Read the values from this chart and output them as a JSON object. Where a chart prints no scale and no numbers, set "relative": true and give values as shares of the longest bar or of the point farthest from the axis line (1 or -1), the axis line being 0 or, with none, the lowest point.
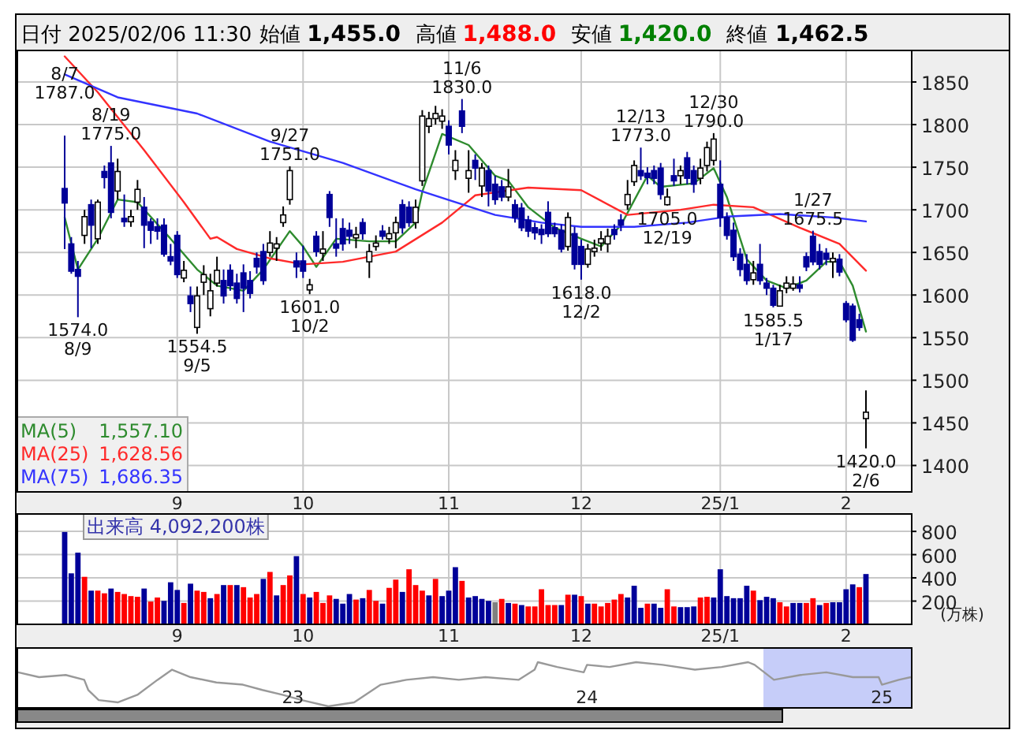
{
  "chart_data": [
    {
      "type": "candlestick",
      "annotations": [
        "始値",
        "1,455.0",
        "高値",
        "1,488.0",
        "安値",
        "1,420.0",
        "終値",
        "1,462.5",
        "1,557.10",
        "1,628.56",
        "1,686.35",
        {
          "text": "8/19\n1775.0",
          "y": 1775.0
        },
        {
          "text": "8/7\n1787.0",
          "y": 1787.0
        },
        {
          "text": "1574.0\n8/9",
          "y": 1574.0
        },
        {
          "text": "1554.5\n9/5",
          "y": 1554.5
        },
        {
          "text": "9/27\n1751.0",
          "y": 1751.0
        },
        {
          "text": "1601.0\n10/2",
          "y": 1601.0
        },
        {
          "text": "11/6\n1830.0",
          "y": 1830.0
        },
        {
          "text": "1618.0\n12/2",
          "y": 1618.0
        },
        {
          "text": "12/13\n1773.0",
          "y": 1773.0
        },
        {
          "text": "1705.0\n12/19",
          "y": 1705.0
        },
        {
          "text": "12/30\n1790.0",
          "y": 1790.0
        },
        {
          "text": "1585.5\n1/17",
          "y": 1585.5
        },
        {
          "text": "1/27\n1675.5",
          "y": 1675.5
        },
        {
          "text": "1420.0\n2/6",
          "y": 1420.0
        }
      ],
      "title": "日付 2025/02/06 11:30",
      "categories": [
        null,
        null,
        null,
        null,
        null,
        null,
        null,
        null,
        null,
        null,
        null,
        null,
        null,
        null,
        null,
        null,
        null,
        "9",
        null,
        null,
        null,
        null,
        null,
        null,
        null,
        null,
        null,
        null,
        null,
        null,
        null,
        null,
        null,
        null,
        null,
        null,
        "10",
        null,
        null,
        null,
        null,
        null,
        null,
        null,
        null,
        null,
        null,
        null,
        null,
        null,
        null,
        null,
        null,
        null,
        null,
        null,
        null,
        null,
        "11",
        null,
        null,
        null,
        null,
        null,
        null,
        null,
        null,
        null,
        null,
        null,
        null,
        null,
        null,
        null,
        null,
        null,
        null,
        null,
        "12",
        null,
        null,
        null,
        null,
        null,
        null,
        null,
        null,
        null,
        null,
        null,
        null,
        null,
        null,
        null,
        null,
        null,
        null,
        null,
        null,
        "25/1",
        null,
        null,
        null,
        null,
        null,
        null,
        null,
        null,
        null,
        null,
        null,
        null,
        null,
        null,
        null,
        null,
        null,
        null,
        "2",
        null,
        null,
        null
      ],
      "ohlc": [
        [
          1725,
          1787.0,
          1654,
          1708
        ],
        [
          1660,
          1668,
          1625,
          1628
        ],
        [
          1630,
          1640,
          1574.0,
          1622
        ],
        [
          1670,
          1700,
          1660,
          1692
        ],
        [
          1706,
          1712,
          1655,
          1682
        ],
        [
          1666,
          1712,
          1660,
          1709
        ],
        [
          1745,
          1752,
          1725,
          1738
        ],
        [
          1755,
          1775.0,
          1690,
          1697
        ],
        [
          1722,
          1760,
          1712,
          1745
        ],
        [
          1690,
          1718,
          1680,
          1686
        ],
        [
          1686,
          1700,
          1680,
          1692
        ],
        [
          1709,
          1735,
          1700,
          1724
        ],
        [
          1703,
          1715,
          1655,
          1682
        ],
        [
          1686,
          1690,
          1660,
          1676
        ],
        [
          1680,
          1690,
          1665,
          1675
        ],
        [
          1682,
          1690,
          1645,
          1648
        ],
        [
          1645,
          1660,
          1635,
          1640
        ],
        [
          1670,
          1675,
          1620,
          1624
        ],
        [
          1620,
          1640,
          1615,
          1629
        ],
        [
          1599,
          1610,
          1580,
          1590
        ],
        [
          1562,
          1610,
          1554.5,
          1599
        ],
        [
          1615,
          1635,
          1600,
          1624
        ],
        [
          1584,
          1625,
          1575,
          1605
        ],
        [
          1614,
          1645,
          1610,
          1629
        ],
        [
          1617,
          1630,
          1590,
          1599
        ],
        [
          1629,
          1636,
          1605,
          1611
        ],
        [
          1614,
          1625,
          1590,
          1596
        ],
        [
          1626,
          1636,
          1580,
          1608
        ],
        [
          1617,
          1628,
          1596,
          1602
        ],
        [
          1643,
          1650,
          1625,
          1633
        ],
        [
          1651,
          1660,
          1612,
          1617
        ],
        [
          1650,
          1675,
          1645,
          1661
        ],
        [
          1655,
          1668,
          1640,
          1660
        ],
        [
          1685,
          1704,
          1680,
          1694
        ],
        [
          1712,
          1751.0,
          1706,
          1746
        ],
        [
          1640,
          1650,
          1620,
          1633
        ],
        [
          1640,
          1658,
          1620,
          1628
        ],
        [
          1606,
          1619,
          1601.0,
          1612
        ],
        [
          1669,
          1675,
          1645,
          1651
        ],
        [
          1649,
          1675,
          1640,
          1654
        ],
        [
          1718,
          1722,
          1680,
          1691
        ],
        [
          1660,
          1690,
          1645,
          1655
        ],
        [
          1678,
          1690,
          1652,
          1660
        ],
        [
          1676,
          1685,
          1660,
          1669
        ],
        [
          1667,
          1680,
          1655,
          1671
        ],
        [
          1685,
          1690,
          1665,
          1672
        ],
        [
          1639,
          1660,
          1620,
          1651
        ],
        [
          1657,
          1670,
          1652,
          1661
        ],
        [
          1675,
          1682,
          1665,
          1669
        ],
        [
          1666,
          1680,
          1660,
          1672
        ],
        [
          1673,
          1692,
          1655,
          1685
        ],
        [
          1706,
          1712,
          1672,
          1679
        ],
        [
          1703,
          1710,
          1680,
          1685
        ],
        [
          1685,
          1712,
          1678,
          1703
        ],
        [
          1734,
          1817,
          1728,
          1810
        ],
        [
          1798,
          1815,
          1790,
          1807
        ],
        [
          1807,
          1822,
          1800,
          1813
        ],
        [
          1804,
          1818,
          1795,
          1810
        ],
        [
          1798,
          1805,
          1765,
          1776
        ],
        [
          1746,
          1770,
          1735,
          1758
        ],
        [
          1816,
          1830.0,
          1790,
          1798
        ],
        [
          1737,
          1770,
          1720,
          1746
        ],
        [
          1758,
          1765,
          1735,
          1749
        ],
        [
          1728,
          1755,
          1715,
          1749
        ],
        [
          1746,
          1752,
          1704,
          1722
        ],
        [
          1730,
          1740,
          1706,
          1712
        ],
        [
          1727,
          1735,
          1710,
          1715
        ],
        [
          1715,
          1748,
          1710,
          1727
        ],
        [
          1706,
          1712,
          1685,
          1691
        ],
        [
          1702,
          1708,
          1675,
          1679
        ],
        [
          1688,
          1693,
          1668,
          1675
        ],
        [
          1679,
          1685,
          1665,
          1673
        ],
        [
          1677,
          1683,
          1660,
          1671
        ],
        [
          1697,
          1710,
          1668,
          1672
        ],
        [
          1679,
          1685,
          1668,
          1672
        ],
        [
          1676,
          1683,
          1650,
          1654
        ],
        [
          1657,
          1697,
          1652,
          1691
        ],
        [
          1672,
          1680,
          1630,
          1636
        ],
        [
          1657,
          1665,
          1618.0,
          1636
        ],
        [
          1636,
          1660,
          1632,
          1654
        ],
        [
          1651,
          1665,
          1645,
          1655
        ],
        [
          1661,
          1675,
          1652,
          1666
        ],
        [
          1660,
          1678,
          1650,
          1669
        ],
        [
          1677,
          1683,
          1665,
          1671
        ],
        [
          1688,
          1695,
          1675,
          1682
        ],
        [
          1706,
          1735,
          1700,
          1718
        ],
        [
          1733,
          1758,
          1728,
          1752
        ],
        [
          1746,
          1773.0,
          1735,
          1740
        ],
        [
          1743,
          1750,
          1730,
          1738
        ],
        [
          1746,
          1752,
          1730,
          1737
        ],
        [
          1749,
          1755,
          1712,
          1718
        ],
        [
          1706,
          1725,
          1705.0,
          1715
        ],
        [
          1740,
          1760,
          1728,
          1734
        ],
        [
          1740,
          1752,
          1730,
          1746
        ],
        [
          1761,
          1768,
          1730,
          1737
        ],
        [
          1746,
          1752,
          1720,
          1730
        ],
        [
          1737,
          1760,
          1730,
          1749
        ],
        [
          1752,
          1780,
          1745,
          1773
        ],
        [
          1758,
          1790.0,
          1752,
          1783
        ],
        [
          1730,
          1758,
          1680,
          1691
        ],
        [
          1691,
          1697,
          1665,
          1670
        ],
        [
          1676,
          1685,
          1640,
          1645
        ],
        [
          1648,
          1655,
          1622,
          1630
        ],
        [
          1636,
          1648,
          1612,
          1617
        ],
        [
          1618,
          1640,
          1612,
          1626
        ],
        [
          1636,
          1660,
          1612,
          1617
        ],
        [
          1614,
          1620,
          1600,
          1608
        ],
        [
          1608,
          1612,
          1585.5,
          1588
        ],
        [
          1587,
          1612,
          1587,
          1605
        ],
        [
          1608,
          1622,
          1602,
          1614
        ],
        [
          1608,
          1622,
          1605,
          1613
        ],
        [
          1612,
          1622,
          1603,
          1608
        ],
        [
          1645,
          1650,
          1628,
          1633
        ],
        [
          1669,
          1675.5,
          1635,
          1639
        ],
        [
          1651,
          1660,
          1630,
          1636
        ],
        [
          1649,
          1655,
          1635,
          1642
        ],
        [
          1639,
          1650,
          1620,
          1643
        ],
        [
          1642,
          1648,
          1622,
          1627
        ],
        [
          1590,
          1593,
          1568,
          1571
        ],
        [
          1587,
          1590,
          1545,
          1547
        ],
        [
          1571,
          1578,
          1558,
          1562
        ],
        [
          1455.0,
          1488.0,
          1420.0,
          1462.5
        ]
      ],
      "ylim": [
        1369,
        1887
      ],
      "yticks": [
        1400,
        1450,
        1500,
        1550,
        1600,
        1650,
        1700,
        1750,
        1800,
        1850
      ],
      "grid": true,
      "legend": "bottom left",
      "series": [
        {
          "name": "MA(5)",
          "type": "line",
          "color": "#2e8b2e",
          "values": [
            1691,
            null,
            1630,
            null,
            null,
            1666,
            null,
            null,
            1712,
            null,
            null,
            1709,
            null,
            null,
            null,
            null,
            1666,
            null,
            null,
            null,
            1630,
            null,
            null,
            1611,
            null,
            null,
            null,
            1605,
            null,
            null,
            1630,
            null,
            null,
            null,
            1675,
            null,
            1657,
            null,
            1633,
            null,
            null,
            1666,
            null,
            null,
            null,
            null,
            1663,
            null,
            null,
            null,
            1663,
            null,
            null,
            1685,
            1721,
            null,
            null,
            1789,
            null,
            null,
            null,
            1776,
            null,
            null,
            null,
            1740,
            null,
            1734,
            null,
            null,
            1703,
            null,
            null,
            null,
            1679,
            null,
            null,
            null,
            1666,
            null,
            null,
            1657,
            null,
            null,
            1682,
            null,
            null,
            null,
            1740,
            null,
            1727,
            null,
            null,
            null,
            null,
            1731,
            null,
            null,
            1749,
            null,
            1715,
            null,
            null,
            1642,
            null,
            null,
            1617,
            null,
            null,
            1608,
            null,
            null,
            1617,
            null,
            null,
            1639,
            null,
            1639,
            null,
            1611,
            null,
            1557.1
          ]
        },
        {
          "name": "MA(25)",
          "type": "line",
          "color": "#ff2a2a",
          "values": [
            1880,
            null,
            null,
            null,
            null,
            1838,
            null,
            null,
            null,
            null,
            null,
            null,
            1770,
            null,
            null,
            null,
            null,
            null,
            1709,
            null,
            null,
            null,
            1666,
            1668,
            null,
            null,
            1654,
            null,
            null,
            null,
            null,
            1643,
            null,
            null,
            null,
            null,
            1636,
            null,
            null,
            null,
            null,
            null,
            1639,
            null,
            null,
            null,
            null,
            null,
            null,
            null,
            1651,
            null,
            null,
            null,
            null,
            null,
            null,
            1685,
            null,
            null,
            null,
            null,
            1717,
            null,
            null,
            null,
            null,
            null,
            null,
            null,
            1726,
            null,
            null,
            null,
            null,
            null,
            null,
            null,
            1723,
            null,
            null,
            null,
            null,
            null,
            null,
            1694,
            null,
            null,
            null,
            null,
            null,
            null,
            null,
            1700,
            null,
            null,
            null,
            null,
            1706,
            null,
            null,
            null,
            null,
            null,
            1703,
            null,
            null,
            null,
            null,
            null,
            null,
            1679,
            null,
            null,
            null,
            null,
            null,
            1660,
            null,
            null,
            null,
            1628.56
          ]
        },
        {
          "name": "MA(75)",
          "type": "line",
          "color": "#3333ff",
          "values": [
            1859,
            null,
            null,
            null,
            null,
            null,
            null,
            null,
            1832,
            null,
            null,
            null,
            null,
            null,
            null,
            null,
            null,
            null,
            null,
            null,
            1813,
            null,
            null,
            null,
            null,
            null,
            null,
            null,
            null,
            null,
            null,
            1780,
            null,
            null,
            null,
            null,
            null,
            null,
            null,
            null,
            null,
            null,
            1755,
            null,
            null,
            null,
            null,
            null,
            null,
            null,
            null,
            null,
            null,
            1724,
            null,
            null,
            null,
            null,
            null,
            null,
            null,
            null,
            null,
            null,
            null,
            1694,
            null,
            null,
            null,
            null,
            null,
            null,
            1685,
            null,
            null,
            null,
            null,
            null,
            1680,
            null,
            null,
            null,
            null,
            null,
            null,
            null,
            1680,
            null,
            null,
            null,
            null,
            null,
            null,
            null,
            1685,
            null,
            null,
            null,
            null,
            null,
            1692,
            null,
            null,
            null,
            null,
            null,
            null,
            null,
            1695,
            null,
            null,
            null,
            null,
            null,
            null,
            null,
            1691,
            null,
            null,
            null,
            null,
            1686.35
          ]
        }
      ]
    },
    {
      "type": "bar",
      "title": "出来高 4,092,200株",
      "ylabel": "(万株)",
      "categories": [
        null,
        null,
        null,
        null,
        null,
        null,
        null,
        null,
        null,
        null,
        null,
        null,
        null,
        null,
        null,
        null,
        null,
        "9",
        null,
        null,
        null,
        null,
        null,
        null,
        null,
        null,
        null,
        null,
        null,
        null,
        null,
        null,
        null,
        null,
        null,
        null,
        "10",
        null,
        null,
        null,
        null,
        null,
        null,
        null,
        null,
        null,
        null,
        null,
        null,
        null,
        null,
        null,
        null,
        null,
        null,
        null,
        null,
        null,
        "11",
        null,
        null,
        null,
        null,
        null,
        null,
        null,
        null,
        null,
        null,
        null,
        null,
        null,
        null,
        null,
        null,
        null,
        null,
        null,
        "12",
        null,
        null,
        null,
        null,
        null,
        null,
        null,
        null,
        null,
        null,
        null,
        null,
        null,
        null,
        null,
        null,
        null,
        null,
        null,
        null,
        "25/1",
        null,
        null,
        null,
        null,
        null,
        null,
        null,
        null,
        null,
        null,
        null,
        null,
        null,
        null,
        null,
        null,
        null,
        null,
        "2",
        null,
        null,
        null
      ],
      "values": [
        795,
        439,
        617,
        409,
        290,
        290,
        267,
        308,
        279,
        261,
        243,
        237,
        308,
        196,
        231,
        202,
        362,
        296,
        184,
        350,
        290,
        279,
        225,
        261,
        338,
        338,
        338,
        320,
        231,
        261,
        391,
        451,
        249,
        338,
        421,
        587,
        261,
        231,
        279,
        184,
        249,
        219,
        178,
        261,
        213,
        225,
        296,
        202,
        178,
        314,
        385,
        279,
        474,
        338,
        290,
        249,
        391,
        243,
        290,
        492,
        374,
        231,
        243,
        219,
        202,
        190,
        219,
        184,
        178,
        166,
        154,
        154,
        302,
        166,
        166,
        166,
        255,
        255,
        243,
        178,
        178,
        154,
        184,
        213,
        261,
        231,
        332,
        142,
        178,
        178,
        142,
        302,
        154,
        148,
        148,
        154,
        231,
        237,
        231,
        474,
        243,
        225,
        225,
        332,
        290,
        208,
        237,
        225,
        190,
        154,
        184,
        184,
        184,
        225,
        166,
        184,
        190,
        190,
        302,
        344,
        320,
        433
      ],
      "colors": [
        "#000099",
        "#000099",
        "#000099",
        "#ff0000",
        "#000099",
        "#ff0000",
        "#ff0000",
        "#000099",
        "#ff0000",
        "#ff0000",
        "#ff0000",
        "#ff0000",
        "#000099",
        "#ff0000",
        "#ff0000",
        "#000099",
        "#000099",
        "#000099",
        "#ff0000",
        "#000099",
        "#ff0000",
        "#ff0000",
        "#000099",
        "#ff0000",
        "#000099",
        "#ff0000",
        "#000099",
        "#ff0000",
        "#ff0000",
        "#ff0000",
        "#000099",
        "#ff0000",
        "#000099",
        "#ff0000",
        "#ff0000",
        "#000099",
        "#ff0000",
        "#000099",
        "#ff0000",
        "#ff0000",
        "#ff0000",
        "#000099",
        "#000099",
        "#000099",
        "#ff0000",
        "#000099",
        "#ff0000",
        "#ff0000",
        "#000099",
        "#ff0000",
        "#ff0000",
        "#000099",
        "#ff0000",
        "#ff0000",
        "#ff0000",
        "#000099",
        "#ff0000",
        "#000099",
        "#000099",
        "#000099",
        "#ff0000",
        "#000099",
        "#000099",
        "#000099",
        "#000099",
        "#808080",
        "#ff0000",
        "#000099",
        "#ff0000",
        "#000099",
        "#ff0000",
        "#ff0000",
        "#ff0000",
        "#ff0000",
        "#ff0000",
        "#000099",
        "#ff0000",
        "#000099",
        "#ff0000",
        "#000099",
        "#ff0000",
        "#ff0000",
        "#ff0000",
        "#ff0000",
        "#ff0000",
        "#000099",
        "#000099",
        "#000099",
        "#ff0000",
        "#000099",
        "#000099",
        "#ff0000",
        "#ff0000",
        "#000099",
        "#000099",
        "#000099",
        "#ff0000",
        "#ff0000",
        "#000099",
        "#000099",
        "#000099",
        "#000099",
        "#000099",
        "#000099",
        "#ff0000",
        "#000099",
        "#000099",
        "#000099",
        "#ff0000",
        "#ff0000",
        "#000099",
        "#000099",
        "#ff0000",
        "#ff0000",
        "#000099",
        "#ff0000",
        "#000099",
        "#000099",
        "#000099",
        "#000099",
        "#ff0000",
        "#000099"
      ],
      "ylim": [
        0,
        950
      ],
      "yticks": [
        200,
        400,
        600,
        800
      ],
      "grid": true
    },
    {
      "type": "line",
      "relative": true,
      "x": [
        "2022-01-25",
        "2022-02-20",
        "2022-03-25",
        "2022-04-17",
        "2022-04-22",
        "2022-05-05",
        "2022-05-29",
        "2022-06-22",
        "2022-07-17",
        "2022-08-04",
        "2022-08-27",
        "2022-09-28",
        "2022-10-31",
        "2022-11-24",
        "2022-12-19",
        "2023-01-12",
        "2023-02-14",
        "2023-03-18",
        "2023-04-20",
        "2023-05-22",
        "2023-06-24",
        "2023-07-26",
        "2023-08-28",
        "2023-10-08",
        "2023-10-28",
        "2023-11-01",
        "2023-11-25",
        "2023-12-28",
        "2024-01-01",
        "2024-01-29",
        "2024-03-02",
        "2024-04-04",
        "2024-05-14",
        "2024-06-16",
        "2024-07-19",
        "2024-07-27",
        "2024-08-20",
        "2024-09-22",
        "2024-10-24",
        "2024-11-26",
        "2024-12-28",
        "2025-01-01",
        "2025-01-22",
        "2025-02-06"
      ],
      "series": [
        {
          "color": "#999999",
          "values": [
            0.77,
            0.66,
            0.71,
            0.6,
            0.37,
            0.14,
            0.09,
            0.26,
            0.6,
            0.83,
            0.66,
            0.54,
            0.49,
            0.37,
            0.26,
            0.14,
            0,
            0.09,
            0.49,
            0.6,
            0.66,
            0.6,
            0.66,
            0.6,
            0.83,
            1,
            0.89,
            0.77,
            0.94,
            0.89,
            1,
            0.94,
            0.83,
            0.89,
            1,
            0.94,
            0.6,
            0.71,
            0.77,
            0.66,
            0.66,
            0.49,
            0.6,
            0.66
          ]
        }
      ],
      "xlim": [
        "2022-01-24",
        "2025-02-07"
      ],
      "xticks": [
        {
          "value": "2023-01-01",
          "label": "23"
        },
        {
          "value": "2024-01-01",
          "label": "24"
        },
        {
          "value": "2025-01-01",
          "label": "25"
        }
      ],
      "bands": [
        {
          "axis": "x",
          "from": "2024-08-07",
          "to": "2025-02-06",
          "color": "#b8c0f8"
        }
      ]
    }
  ]
}
